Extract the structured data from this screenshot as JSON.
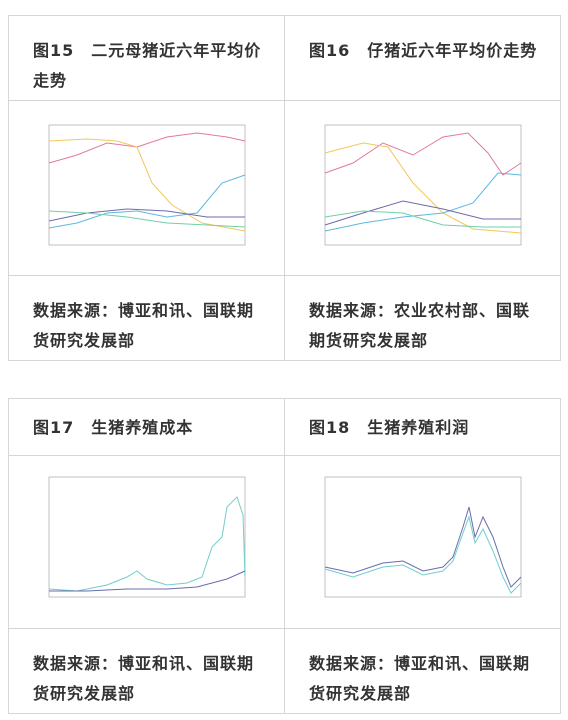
{
  "panels": [
    {
      "title": "图15　二元母猪近六年平均价走势",
      "source": "数据来源：博亚和讯、国联期货研究发展部"
    },
    {
      "title": "图16　仔猪近六年平均价走势",
      "source": "数据来源：农业农村部、国联期货研究发展部"
    },
    {
      "title": "图17　生猪养殖成本",
      "source": "数据来源：博亚和讯、国联期货研究发展部"
    },
    {
      "title": "图18　生猪养殖利润",
      "source": "数据来源：博亚和讯、国联期货研究发展部"
    }
  ]
}
